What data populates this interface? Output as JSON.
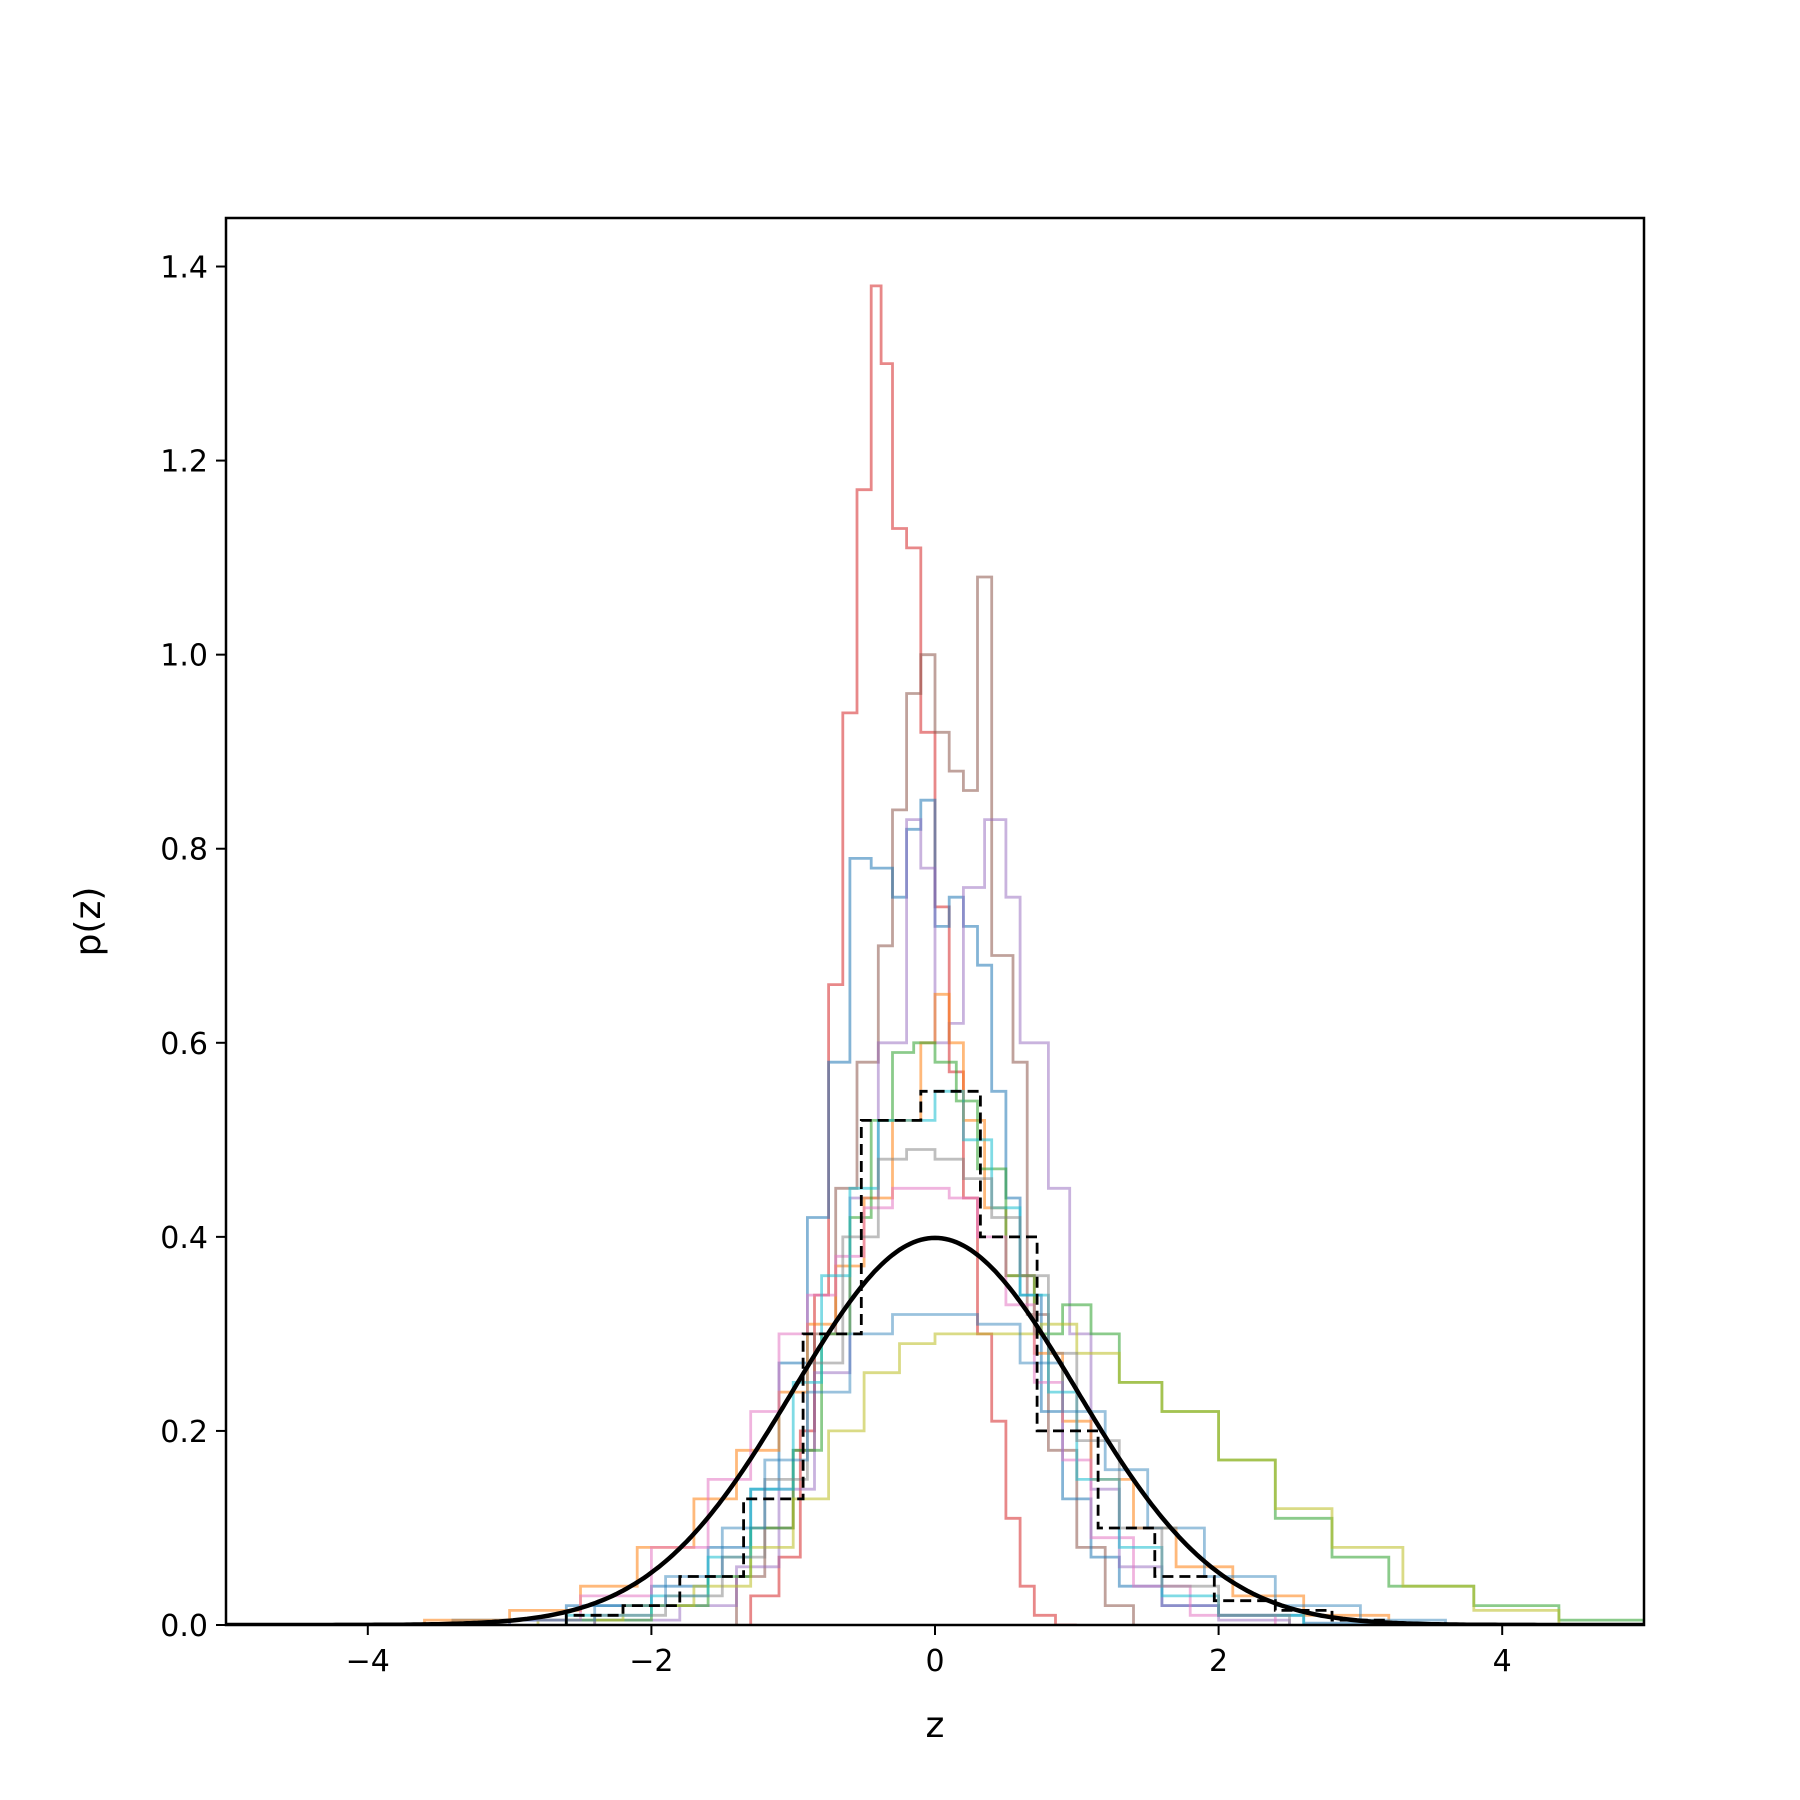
{
  "chart_data": {
    "type": "line",
    "title": "",
    "xlabel": "z",
    "ylabel": "p(z)",
    "xlim": [
      -5,
      5
    ],
    "ylim": [
      0,
      1.45
    ],
    "xticks": [
      -4,
      -2,
      0,
      2,
      4
    ],
    "xtick_labels": [
      "−4",
      "−2",
      "0",
      "2",
      "4"
    ],
    "yticks": [
      0.0,
      0.2,
      0.4,
      0.6,
      0.8,
      1.0,
      1.2,
      1.4
    ],
    "ytick_labels": [
      "0.0",
      "0.2",
      "0.4",
      "0.6",
      "0.8",
      "1.0",
      "1.2",
      "1.4"
    ],
    "grid": false,
    "legend": "none",
    "histograms": [
      {
        "color": "#d62728",
        "opacity": 0.55,
        "edges": [
          -1.3,
          -1.1,
          -0.95,
          -0.85,
          -0.75,
          -0.65,
          -0.55,
          -0.45,
          -0.38,
          -0.3,
          -0.2,
          -0.1,
          0.0,
          0.1,
          0.2,
          0.3,
          0.4,
          0.5,
          0.6,
          0.7,
          0.85,
          1.0
        ],
        "values": [
          0.03,
          0.07,
          0.2,
          0.34,
          0.66,
          0.94,
          1.17,
          1.38,
          1.3,
          1.13,
          1.11,
          0.92,
          0.74,
          0.57,
          0.44,
          0.3,
          0.21,
          0.11,
          0.04,
          0.01,
          0.0
        ]
      },
      {
        "color": "#8c564b",
        "opacity": 0.55,
        "edges": [
          -1.4,
          -1.2,
          -1.0,
          -0.85,
          -0.7,
          -0.55,
          -0.4,
          -0.3,
          -0.2,
          -0.1,
          0.0,
          0.1,
          0.2,
          0.3,
          0.4,
          0.55,
          0.65,
          0.8,
          1.0,
          1.2,
          1.4
        ],
        "values": [
          0.05,
          0.1,
          0.18,
          0.3,
          0.45,
          0.58,
          0.7,
          0.84,
          0.96,
          1.0,
          0.92,
          0.88,
          0.86,
          1.08,
          0.69,
          0.58,
          0.32,
          0.18,
          0.08,
          0.02
        ]
      },
      {
        "color": "#1f77b4",
        "opacity": 0.55,
        "edges": [
          -3.4,
          -2.6,
          -2.0,
          -1.6,
          -1.3,
          -1.1,
          -0.9,
          -0.75,
          -0.6,
          -0.45,
          -0.3,
          -0.2,
          -0.1,
          0.0,
          0.1,
          0.2,
          0.3,
          0.4,
          0.5,
          0.6,
          0.75,
          0.9,
          1.1,
          1.3,
          1.6,
          2.0,
          2.6,
          3.4
        ],
        "values": [
          0.005,
          0.02,
          0.04,
          0.08,
          0.14,
          0.27,
          0.42,
          0.58,
          0.79,
          0.78,
          0.75,
          0.82,
          0.85,
          0.72,
          0.75,
          0.72,
          0.68,
          0.55,
          0.44,
          0.34,
          0.22,
          0.13,
          0.07,
          0.04,
          0.02,
          0.01,
          0.002
        ]
      },
      {
        "color": "#9467bd",
        "opacity": 0.5,
        "edges": [
          -2.4,
          -1.8,
          -1.4,
          -1.1,
          -0.85,
          -0.6,
          -0.4,
          -0.2,
          -0.1,
          0.0,
          0.1,
          0.2,
          0.35,
          0.5,
          0.6,
          0.8,
          0.95,
          1.1,
          1.3,
          1.6,
          2.0,
          2.5
        ],
        "values": [
          0.005,
          0.02,
          0.06,
          0.14,
          0.26,
          0.44,
          0.6,
          0.83,
          0.78,
          0.6,
          0.62,
          0.76,
          0.83,
          0.75,
          0.6,
          0.45,
          0.3,
          0.14,
          0.06,
          0.02,
          0.005
        ]
      },
      {
        "color": "#ff7f0e",
        "opacity": 0.55,
        "edges": [
          -3.6,
          -3.0,
          -2.5,
          -2.1,
          -1.7,
          -1.4,
          -1.1,
          -0.9,
          -0.7,
          -0.5,
          -0.3,
          -0.1,
          0.0,
          0.1,
          0.2,
          0.35,
          0.5,
          0.7,
          0.9,
          1.1,
          1.4,
          1.7,
          2.1,
          2.6,
          3.2
        ],
        "values": [
          0.005,
          0.015,
          0.04,
          0.08,
          0.13,
          0.18,
          0.24,
          0.31,
          0.37,
          0.44,
          0.52,
          0.6,
          0.65,
          0.6,
          0.52,
          0.43,
          0.36,
          0.28,
          0.21,
          0.15,
          0.1,
          0.06,
          0.03,
          0.01
        ]
      },
      {
        "color": "#2ca02c",
        "opacity": 0.55,
        "edges": [
          -2.6,
          -2.0,
          -1.6,
          -1.3,
          -1.0,
          -0.8,
          -0.6,
          -0.45,
          -0.3,
          -0.15,
          0.0,
          0.15,
          0.3,
          0.5,
          0.7,
          0.9,
          1.1,
          1.3,
          1.6,
          2.0,
          2.4,
          2.8,
          3.2,
          3.8,
          4.4,
          5.0
        ],
        "values": [
          0.005,
          0.02,
          0.05,
          0.1,
          0.18,
          0.3,
          0.42,
          0.52,
          0.59,
          0.6,
          0.58,
          0.54,
          0.47,
          0.36,
          0.3,
          0.33,
          0.3,
          0.25,
          0.22,
          0.17,
          0.11,
          0.07,
          0.04,
          0.02,
          0.005
        ]
      },
      {
        "color": "#bcbd22",
        "opacity": 0.55,
        "edges": [
          -2.8,
          -2.2,
          -1.7,
          -1.3,
          -1.0,
          -0.75,
          -0.5,
          -0.25,
          0.0,
          0.25,
          0.5,
          0.75,
          1.0,
          1.3,
          1.6,
          2.0,
          2.4,
          2.8,
          3.3,
          3.8,
          4.4
        ],
        "values": [
          0.005,
          0.02,
          0.04,
          0.08,
          0.13,
          0.2,
          0.26,
          0.29,
          0.3,
          0.3,
          0.3,
          0.31,
          0.28,
          0.25,
          0.22,
          0.17,
          0.12,
          0.08,
          0.04,
          0.015
        ]
      },
      {
        "color": "#e377c2",
        "opacity": 0.55,
        "edges": [
          -3.0,
          -2.5,
          -2.0,
          -1.6,
          -1.3,
          -1.1,
          -0.9,
          -0.7,
          -0.5,
          -0.3,
          -0.1,
          0.1,
          0.3,
          0.5,
          0.7,
          0.9,
          1.1,
          1.4,
          1.8,
          2.4
        ],
        "values": [
          0.005,
          0.03,
          0.08,
          0.15,
          0.22,
          0.3,
          0.34,
          0.38,
          0.43,
          0.45,
          0.45,
          0.44,
          0.4,
          0.33,
          0.25,
          0.17,
          0.09,
          0.04,
          0.01
        ]
      },
      {
        "color": "#17becf",
        "opacity": 0.55,
        "edges": [
          -2.6,
          -2.0,
          -1.6,
          -1.3,
          -1.0,
          -0.8,
          -0.6,
          -0.4,
          -0.2,
          0.0,
          0.2,
          0.4,
          0.6,
          0.8,
          1.0,
          1.3,
          1.6,
          2.0,
          2.6
        ],
        "values": [
          0.01,
          0.03,
          0.07,
          0.14,
          0.25,
          0.36,
          0.45,
          0.52,
          0.52,
          0.55,
          0.5,
          0.43,
          0.34,
          0.24,
          0.15,
          0.08,
          0.03,
          0.01
        ]
      },
      {
        "color": "#7f7f7f",
        "opacity": 0.5,
        "edges": [
          -2.4,
          -1.9,
          -1.5,
          -1.2,
          -0.9,
          -0.65,
          -0.4,
          -0.2,
          0.0,
          0.2,
          0.4,
          0.6,
          0.8,
          1.0,
          1.3,
          1.6,
          2.0,
          2.5
        ],
        "values": [
          0.01,
          0.03,
          0.07,
          0.15,
          0.27,
          0.4,
          0.48,
          0.49,
          0.48,
          0.46,
          0.42,
          0.36,
          0.28,
          0.19,
          0.1,
          0.04,
          0.01
        ]
      },
      {
        "color": "#1f77b4",
        "opacity": 0.45,
        "edges": [
          -3.0,
          -2.4,
          -1.9,
          -1.5,
          -1.2,
          -0.9,
          -0.6,
          -0.3,
          0.0,
          0.3,
          0.6,
          0.9,
          1.2,
          1.5,
          1.9,
          2.4,
          3.0,
          3.6
        ],
        "values": [
          0.005,
          0.02,
          0.05,
          0.1,
          0.17,
          0.24,
          0.3,
          0.32,
          0.32,
          0.31,
          0.27,
          0.22,
          0.16,
          0.1,
          0.05,
          0.02,
          0.005
        ]
      }
    ],
    "mean_histogram": {
      "color": "#000000",
      "style": "dashed",
      "edges": [
        -2.6,
        -2.2,
        -1.8,
        -1.35,
        -0.93,
        -0.52,
        -0.1,
        0.32,
        0.72,
        1.15,
        1.55,
        1.97,
        2.4,
        2.8,
        3.2
      ],
      "values": [
        0.01,
        0.02,
        0.05,
        0.13,
        0.3,
        0.52,
        0.55,
        0.4,
        0.2,
        0.1,
        0.05,
        0.025,
        0.015,
        0.005
      ]
    },
    "reference_curve": {
      "type": "normal_pdf",
      "mean": 0,
      "std": 1,
      "color": "#000000"
    }
  }
}
